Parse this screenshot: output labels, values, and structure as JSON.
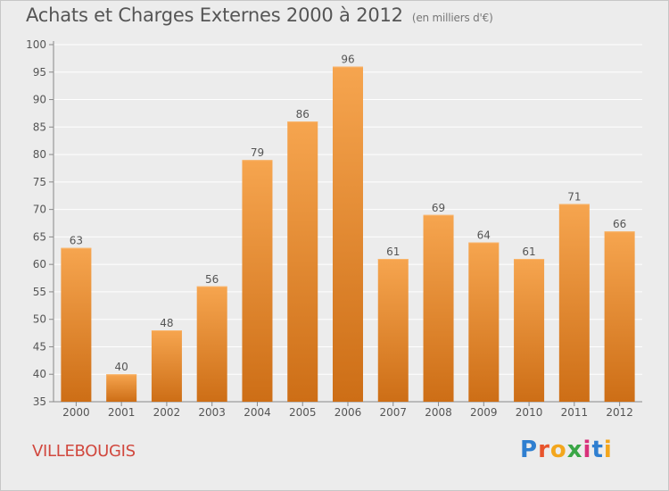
{
  "header": {
    "title": "Achats et Charges Externes 2000 à 2012",
    "unit": "(en milliers d'€)"
  },
  "footer": {
    "town": "VILLEBOUGIS",
    "logo": "Proxiti"
  },
  "colors": {
    "bar_light": "#f6a54f",
    "bar_dark": "#cd6e16",
    "grid": "#ffffff",
    "background": "#ececec",
    "town": "#d1483e"
  },
  "chart_data": {
    "type": "bar",
    "title": "Achats et Charges Externes 2000 à 2012",
    "subtitle": "(en milliers d'€)",
    "categories": [
      "2000",
      "2001",
      "2002",
      "2003",
      "2004",
      "2005",
      "2006",
      "2007",
      "2008",
      "2009",
      "2010",
      "2011",
      "2012"
    ],
    "values": [
      63,
      40,
      48,
      56,
      79,
      86,
      96,
      61,
      69,
      64,
      61,
      71,
      66
    ],
    "ylim": [
      35,
      100
    ],
    "yticks": [
      35,
      40,
      45,
      50,
      55,
      60,
      65,
      70,
      75,
      80,
      85,
      90,
      95,
      100
    ],
    "grid": true,
    "data_labels": true
  }
}
